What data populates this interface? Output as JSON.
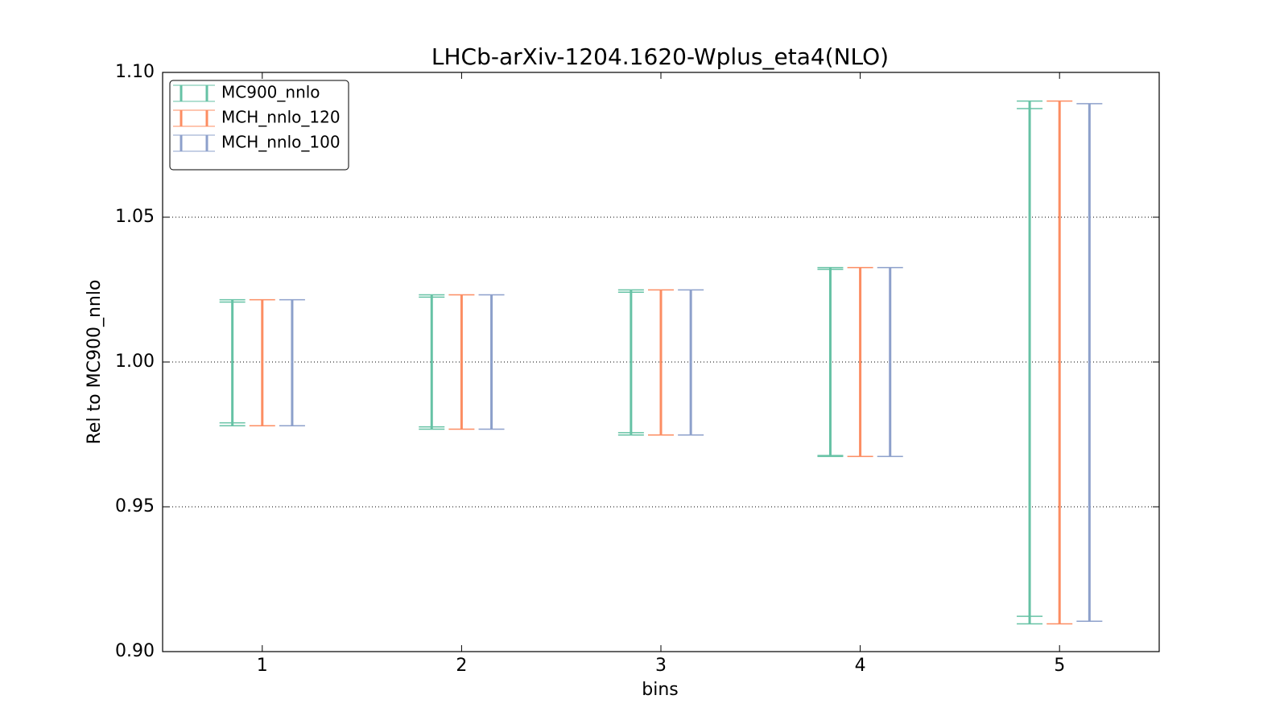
{
  "chart_data": {
    "type": "errorbar",
    "title": "LHCb-arXiv-1204.1620-Wplus_eta4(NLO)",
    "x_label": "bins",
    "y_label": "Rel to MC900_nnlo",
    "x": [
      1,
      2,
      3,
      4,
      5
    ],
    "xlim": [
      0.5,
      5.5
    ],
    "xticks": [
      1,
      2,
      3,
      4,
      5
    ],
    "ylim": [
      0.9,
      1.1
    ],
    "yticks": [
      {
        "value": 0.9,
        "label": "0.90"
      },
      {
        "value": 0.95,
        "label": "0.95"
      },
      {
        "value": 1.0,
        "label": "1.00"
      },
      {
        "value": 1.05,
        "label": "1.05"
      },
      {
        "value": 1.1,
        "label": "1.10"
      }
    ],
    "grid": true,
    "legend": "upper left",
    "series": [
      {
        "name": "MC900_nnlo",
        "color": "#66c2a5",
        "low": [
          0.978,
          0.9768,
          0.9748,
          0.9674,
          0.9096
        ],
        "high": [
          1.0215,
          1.0232,
          1.0249,
          1.0326,
          1.0901
        ],
        "inner_low": [
          0.979,
          0.9776,
          0.9756,
          0.9677,
          0.9122
        ],
        "inner_high": [
          1.0207,
          1.0224,
          1.0241,
          1.032,
          1.0875
        ]
      },
      {
        "name": "MCH_nnlo_120",
        "color": "#fc8d62",
        "low": [
          0.978,
          0.9768,
          0.9748,
          0.9674,
          0.9096
        ],
        "high": [
          1.0215,
          1.0232,
          1.0249,
          1.0326,
          1.0901
        ]
      },
      {
        "name": "MCH_nnlo_100",
        "color": "#8da0cb",
        "low": [
          0.978,
          0.9768,
          0.9748,
          0.9674,
          0.9105
        ],
        "high": [
          1.0215,
          1.0232,
          1.0249,
          1.0326,
          1.0892
        ]
      }
    ]
  }
}
